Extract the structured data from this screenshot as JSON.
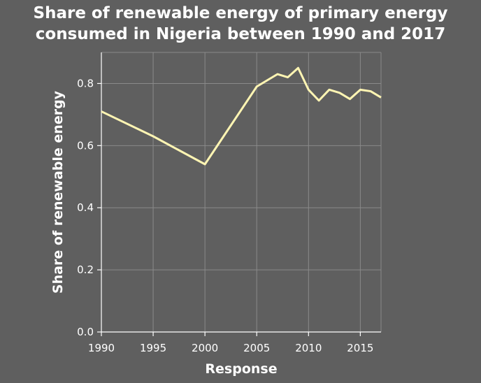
{
  "chart_data": {
    "type": "line",
    "title_line1": "Share of renewable energy of primary energy",
    "title_line2": "consumed in Nigeria between 1990 and 2017",
    "xlabel": "Response",
    "ylabel": "Share of renewable energy",
    "xlim": [
      1990,
      2017
    ],
    "ylim": [
      0.0,
      0.9
    ],
    "x_ticks": [
      1990,
      1995,
      2000,
      2005,
      2010,
      2015
    ],
    "x_tick_labels": [
      "1990",
      "1995",
      "2000",
      "2005",
      "2010",
      "2015"
    ],
    "y_ticks": [
      0.0,
      0.2,
      0.4,
      0.6,
      0.8
    ],
    "y_tick_labels": [
      "0.0",
      "0.2",
      "0.4",
      "0.6",
      "0.8"
    ],
    "grid": true,
    "colors": {
      "background": "#5f5f5f",
      "grid": "#8a8a8a",
      "line": "#fff5b3",
      "text": "#ffffff"
    },
    "series": [
      {
        "x": [
          1990,
          1995,
          2000,
          2005,
          2006,
          2007,
          2008,
          2009,
          2010,
          2011,
          2012,
          2013,
          2014,
          2015,
          2016,
          2017
        ],
        "y": [
          0.71,
          0.63,
          0.54,
          0.79,
          0.81,
          0.83,
          0.82,
          0.85,
          0.78,
          0.745,
          0.78,
          0.77,
          0.75,
          0.78,
          0.775,
          0.755
        ]
      }
    ]
  }
}
